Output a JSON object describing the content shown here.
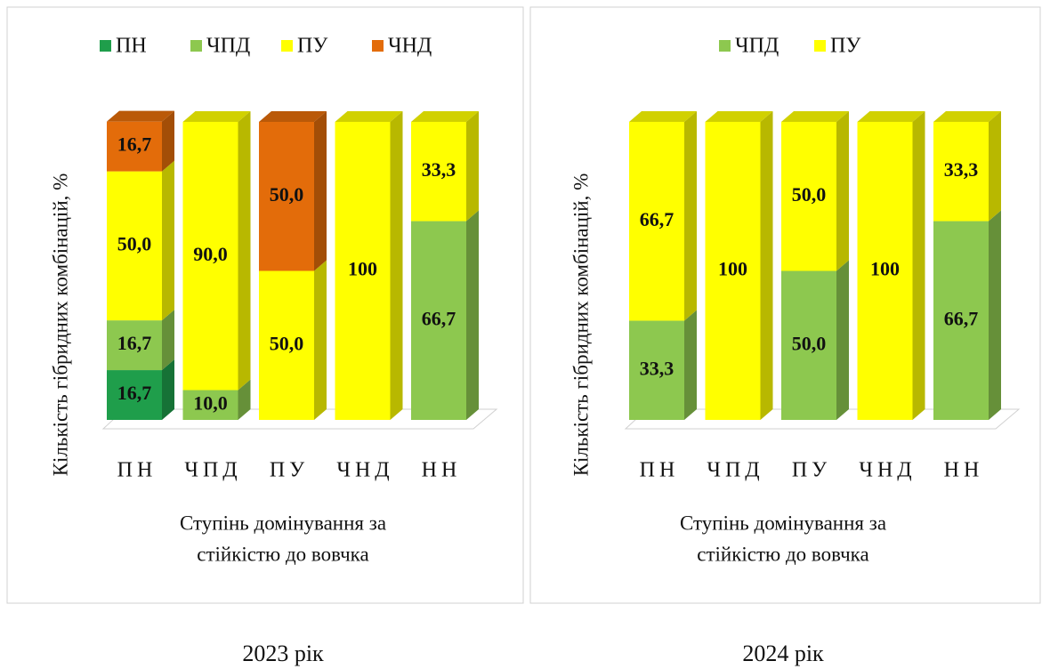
{
  "chart_data": [
    {
      "type": "bar",
      "stacked": true,
      "three_d": true,
      "y_label": "Кількість гібридних комбінацій, %",
      "x_label_lines": [
        "Ступінь домінування за",
        "стійкістю до вовчка"
      ],
      "caption": "2023 рік",
      "categories": [
        "ПН",
        "ЧПД",
        "ПУ",
        "ЧНД",
        "НН"
      ],
      "ylim": [
        0,
        100
      ],
      "series": [
        {
          "name": "ПН",
          "color": "#1f9e4b",
          "values": [
            16.7,
            0,
            0,
            0,
            0
          ],
          "value_labels": [
            "16,7",
            null,
            null,
            null,
            null
          ]
        },
        {
          "name": "ЧПД",
          "color": "#8dc84f",
          "values": [
            16.7,
            10.0,
            0,
            0,
            66.7
          ],
          "value_labels": [
            "16,7",
            "10,0",
            null,
            null,
            "66,7"
          ]
        },
        {
          "name": "ПУ",
          "color": "#ffff00",
          "values": [
            50.0,
            90.0,
            50.0,
            100,
            33.3
          ],
          "value_labels": [
            "50,0",
            "90,0",
            "50,0",
            "100",
            "33,3"
          ]
        },
        {
          "name": "ЧНД",
          "color": "#e36c0a",
          "values": [
            16.7,
            0,
            50.0,
            0,
            0
          ],
          "value_labels": [
            "16,7",
            null,
            "50,0",
            null,
            null
          ]
        }
      ]
    },
    {
      "type": "bar",
      "stacked": true,
      "three_d": true,
      "y_label": "Кількість гібридних комбінацій, %",
      "x_label_lines": [
        "Ступінь домінування за",
        "стійкістю до вовчка"
      ],
      "caption": "2024 рік",
      "categories": [
        "ПН",
        "ЧПД",
        "ПУ",
        "ЧНД",
        "НН"
      ],
      "ylim": [
        0,
        100
      ],
      "series": [
        {
          "name": "ЧПД",
          "color": "#8dc84f",
          "values": [
            33.3,
            0,
            50.0,
            0,
            66.7
          ],
          "value_labels": [
            "33,3",
            null,
            "50,0",
            null,
            "66,7"
          ]
        },
        {
          "name": "ПУ",
          "color": "#ffff00",
          "values": [
            66.7,
            100,
            50.0,
            100,
            33.3
          ],
          "value_labels": [
            "66,7",
            "100",
            "50,0",
            "100",
            "33,3"
          ]
        }
      ]
    }
  ]
}
